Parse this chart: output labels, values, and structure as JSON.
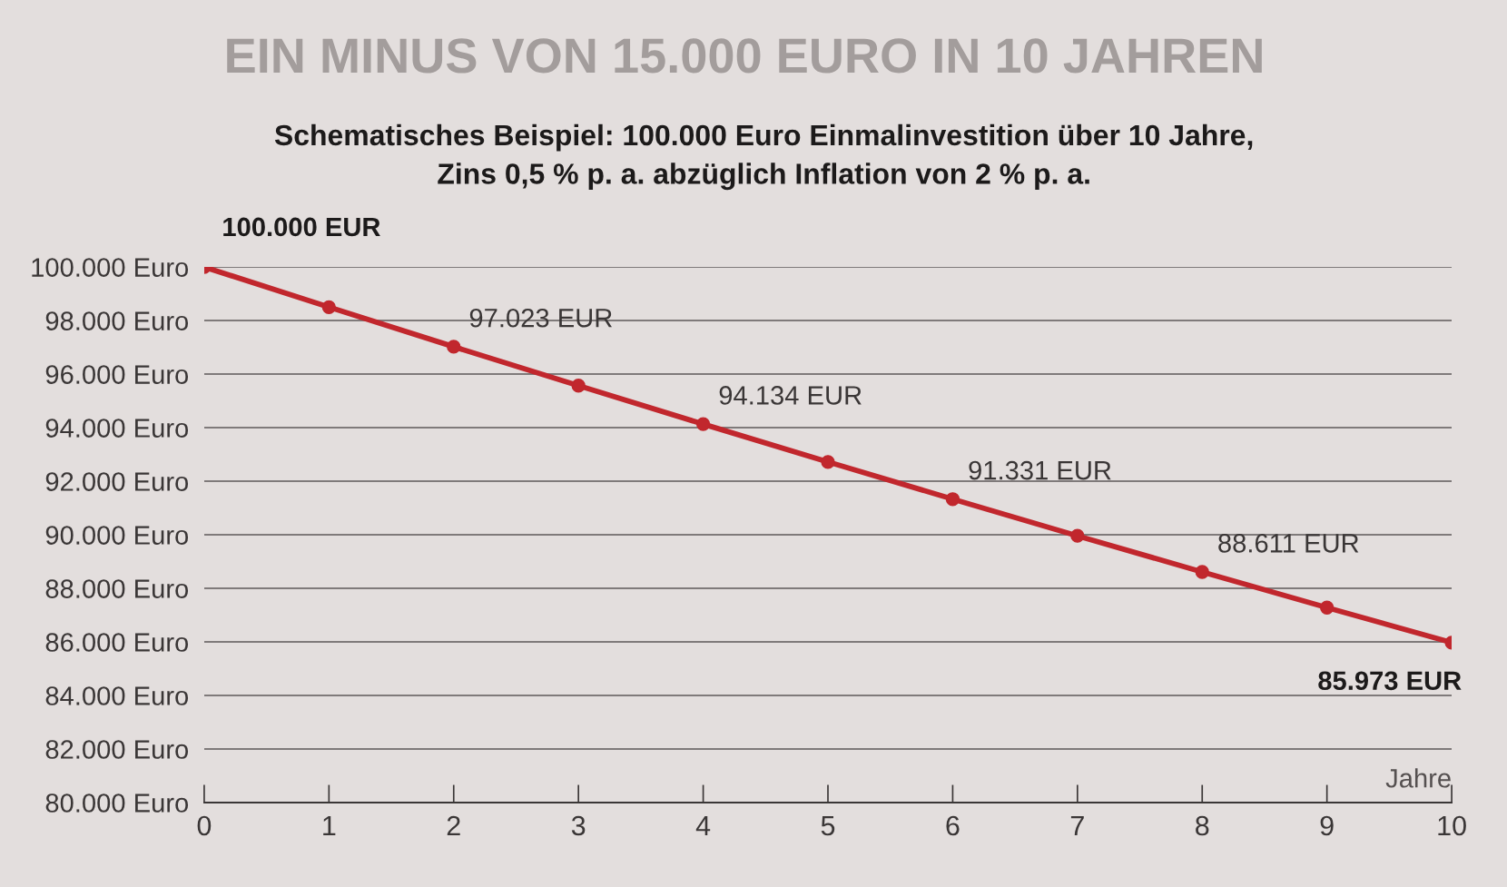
{
  "chart_data": {
    "type": "line",
    "title": "EIN MINUS VON 15.000 EURO IN 10 JAHREN",
    "subtitle": "Schematisches Beispiel: 100.000 Euro Einmalinvestition über 10 Jahre,\nZins 0,5 % p. a. abzüglich Inflation von 2 % p. a.",
    "xlabel": "Jahre",
    "x": [
      0,
      1,
      2,
      3,
      4,
      5,
      6,
      7,
      8,
      9,
      10
    ],
    "series": [
      {
        "color": "#c1272d",
        "values": [
          100000,
          98500,
          97023,
          95570,
          94134,
          92720,
          91331,
          89960,
          88611,
          87280,
          85973
        ],
        "value_labels": [
          "100.000 EUR",
          null,
          "97.023 EUR",
          null,
          "94.134 EUR",
          null,
          "91.331 EUR",
          null,
          "88.611 EUR",
          null,
          "85.973 EUR"
        ]
      }
    ],
    "xlim": [
      0,
      10
    ],
    "ylim": [
      80000,
      100000
    ],
    "xticks": [
      0,
      1,
      2,
      3,
      4,
      5,
      6,
      7,
      8,
      9,
      10
    ],
    "yticks": [
      {
        "value": 80000,
        "label": "80.000 Euro"
      },
      {
        "value": 82000,
        "label": "82.000 Euro"
      },
      {
        "value": 84000,
        "label": "84.000 Euro"
      },
      {
        "value": 86000,
        "label": "86.000 Euro"
      },
      {
        "value": 88000,
        "label": "88.000 Euro"
      },
      {
        "value": 90000,
        "label": "90.000 Euro"
      },
      {
        "value": 92000,
        "label": "92.000 Euro"
      },
      {
        "value": 94000,
        "label": "94.000 Euro"
      },
      {
        "value": 96000,
        "label": "96.000 Euro"
      },
      {
        "value": 98000,
        "label": "98.000 Euro"
      },
      {
        "value": 100000,
        "label": "100.000 Euro"
      }
    ],
    "grid": "y",
    "marker": "circle",
    "line_style": "solid"
  }
}
